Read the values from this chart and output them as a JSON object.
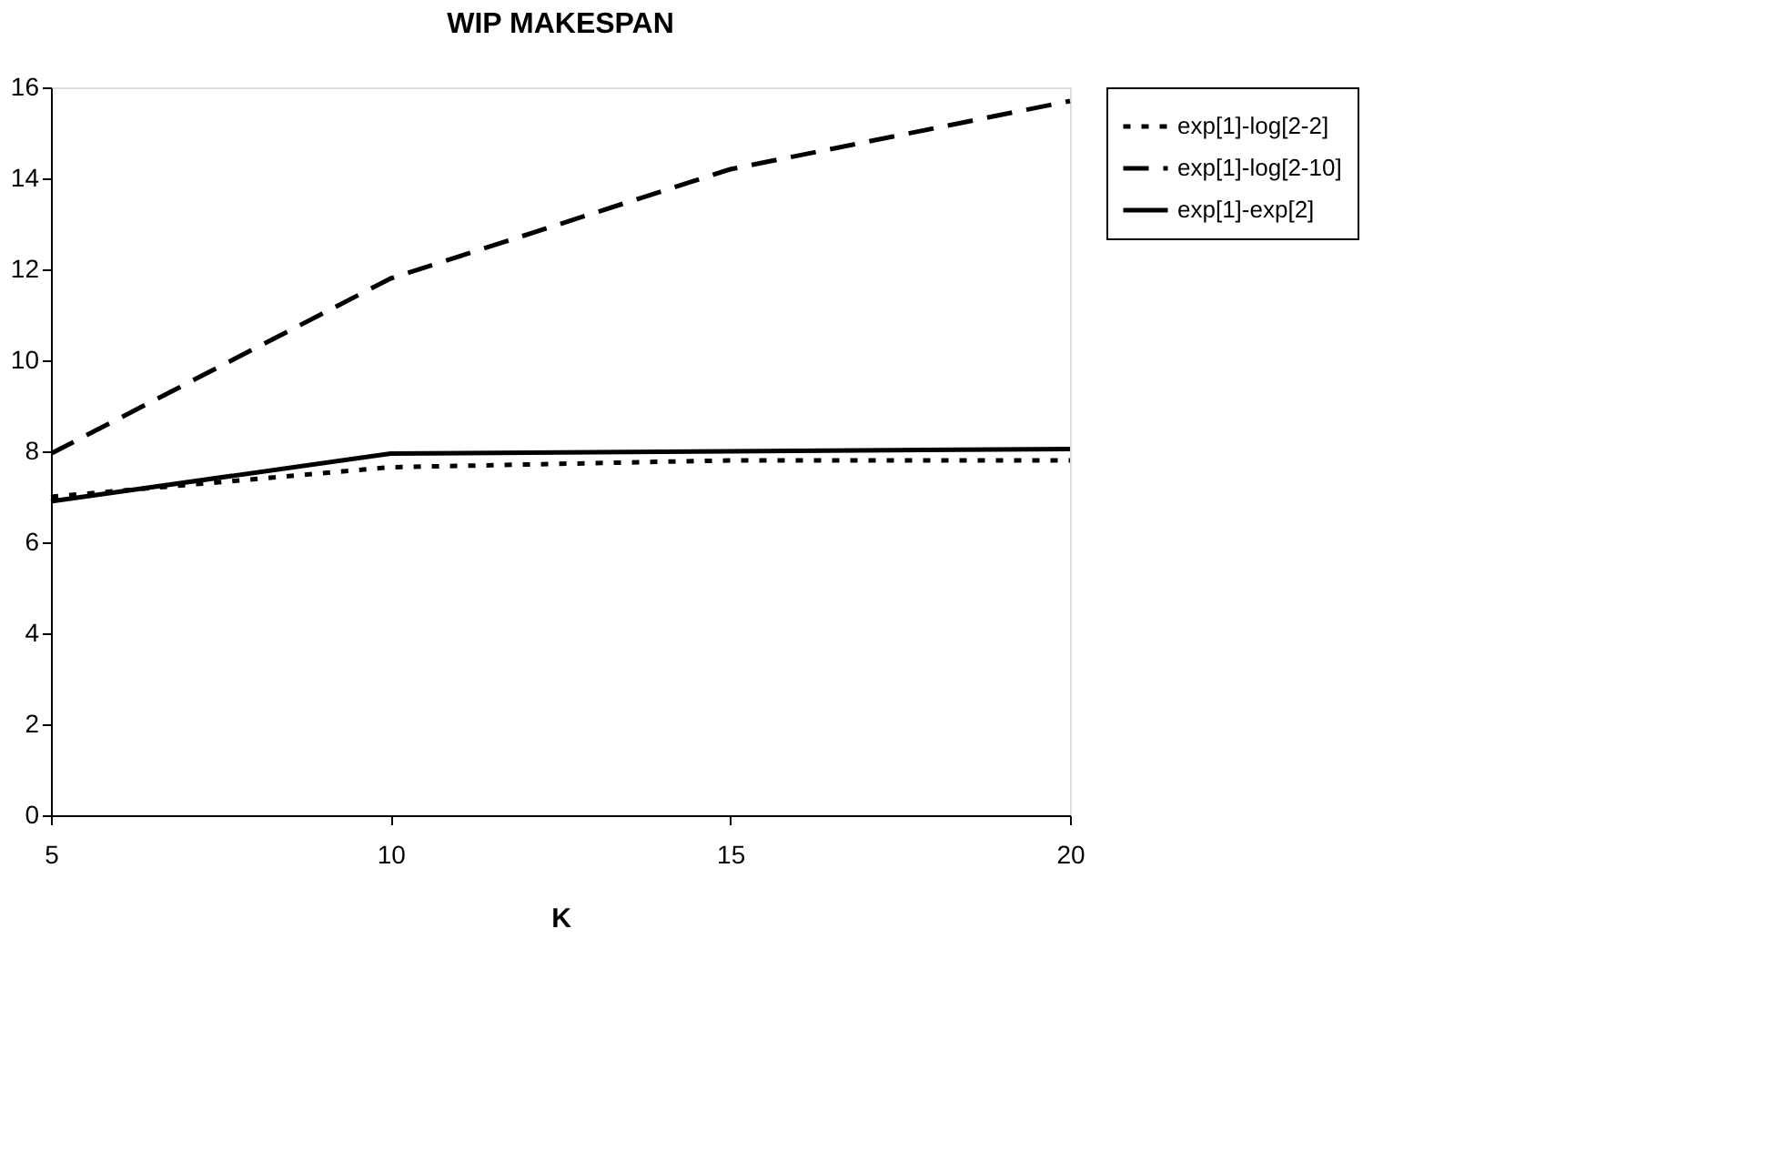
{
  "chart_data": {
    "type": "line",
    "title": "WIP MAKESPAN",
    "xlabel": "K",
    "x": [
      5,
      10,
      15,
      20
    ],
    "series": [
      {
        "name": "exp[1]-log[2-2]",
        "color": "#000000",
        "line_style": "dotted",
        "values": [
          7.0,
          7.65,
          7.8,
          7.8
        ]
      },
      {
        "name": "exp[1]-log[2-10]",
        "color": "#000000",
        "line_style": "dashed",
        "values": [
          7.95,
          11.8,
          14.2,
          15.7
        ]
      },
      {
        "name": "exp[1]-exp[2]",
        "color": "#000000",
        "line_style": "solid",
        "values": [
          6.9,
          7.95,
          8.0,
          8.05
        ]
      }
    ],
    "xlim": [
      5,
      20
    ],
    "xticks": [
      5,
      10,
      15,
      20
    ],
    "ylim": [
      0,
      16
    ],
    "yticks": [
      0,
      2,
      4,
      6,
      8,
      10,
      12,
      14,
      16
    ],
    "grid": false,
    "legend": "right",
    "marker": "none"
  }
}
